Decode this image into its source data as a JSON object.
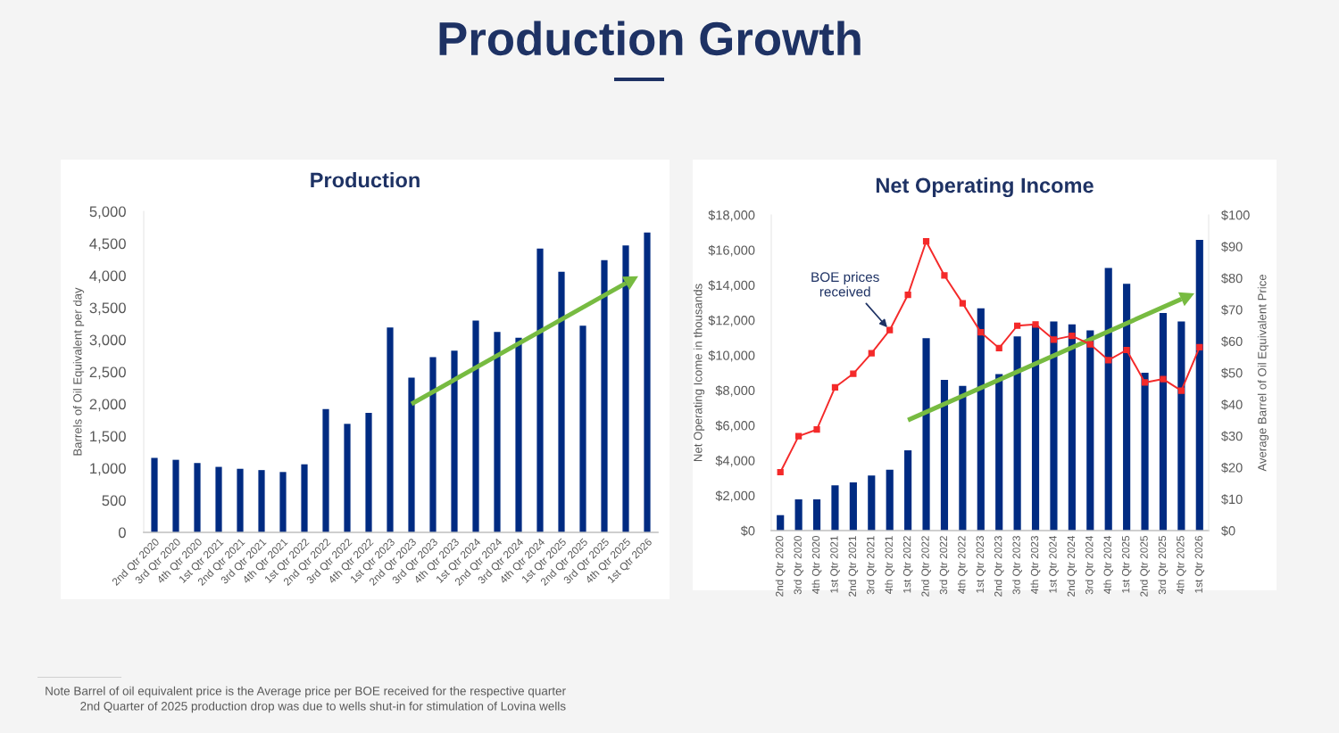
{
  "chart_data": [
    {
      "type": "bar",
      "title": "Production",
      "ylabel": "Barrels of Oil Equivalent per day",
      "categories": [
        "2nd Qtr 2020",
        "3rd Qtr 2020",
        "4th Qtr 2020",
        "1st Qtr 2021",
        "2nd Qtr 2021",
        "3rd Qtr 2021",
        "4th Qtr 2021",
        "1st Qtr 2022",
        "2nd Qtr 2022",
        "3rd Qtr 2022",
        "4th Qtr 2022",
        "1st Qtr 2023",
        "2nd Qtr 2023",
        "3rd Qtr 2023",
        "4th Qtr 2023",
        "1st Qtr 2024",
        "2nd Qtr 2024",
        "3rd Qtr 2024",
        "4th Qtr 2024",
        "1st Qtr 2025",
        "2nd Qtr 2025",
        "3rd Qtr 2025",
        "4th Qtr 2025",
        "1st Qtr 2026"
      ],
      "series": [
        {
          "color": "#002b82",
          "values": [
            1160,
            1130,
            1080,
            1020,
            990,
            970,
            940,
            1060,
            1920,
            1690,
            1860,
            3190,
            2410,
            2730,
            2830,
            3300,
            3120,
            3030,
            4420,
            4060,
            3220,
            4240,
            4470,
            4670
          ]
        },
        {
          "type": "line",
          "color": "#77bb41",
          "x": [
            "2nd Qtr 2023",
            "4th Qtr 2025"
          ],
          "values": [
            2000,
            3880
          ]
        }
      ],
      "ylim": [
        0,
        5000
      ],
      "yticks": [
        {
          "value": 0,
          "label": "0"
        },
        {
          "value": 500,
          "label": "500"
        },
        {
          "value": 1000,
          "label": "1,000"
        },
        {
          "value": 1500,
          "label": "1,500"
        },
        {
          "value": 2000,
          "label": "2,000"
        },
        {
          "value": 2500,
          "label": "2,500"
        },
        {
          "value": 3000,
          "label": "3,000"
        },
        {
          "value": 3500,
          "label": "3,500"
        },
        {
          "value": 4000,
          "label": "4,000"
        },
        {
          "value": 4500,
          "label": "4,500"
        },
        {
          "value": 5000,
          "label": "5,000"
        }
      ],
      "annotations": [
        "Production Growth",
        "Note Barrel of oil equivalent price is the Average price per BOE received for the respective quarter",
        "2nd Quarter of 2025 production drop was due to wells shut-in for stimulation of Lovina wells"
      ]
    },
    {
      "type": "bar",
      "title": "Net Operating Income",
      "ylabel": "Net Operating Icome in thousands",
      "y2label": "Average Barrel of Oil Equivalent Price",
      "categories": [
        "2nd Qtr 2020",
        "3rd Qtr 2020",
        "4th Qtr 2020",
        "1st Qtr 2021",
        "2nd Qtr 2021",
        "3rd Qtr 2021",
        "4th Qtr 2021",
        "1st Qtr 2022",
        "2nd Qtr 2022",
        "3rd Qtr 2022",
        "4th Qtr 2022",
        "1st Qtr 2023",
        "2nd Qtr 2023",
        "3rd Qtr 2023",
        "4th Qtr 2023",
        "1st Qtr 2024",
        "2nd Qtr 2024",
        "3rd Qtr 2024",
        "4th Qtr 2024",
        "1st Qtr 2025",
        "2nd Qtr 2025",
        "3rd Qtr 2025",
        "4th Qtr 2025",
        "1st Qtr 2026"
      ],
      "series": [
        {
          "color": "#002b82",
          "values": [
            880,
            1780,
            1780,
            2580,
            2750,
            3140,
            3470,
            4580,
            10970,
            8590,
            8250,
            12680,
            8930,
            11070,
            11700,
            11920,
            11760,
            11410,
            14980,
            14070,
            9000,
            12410,
            11920,
            16580
          ]
        },
        {
          "type": "line",
          "name": "BOE prices received",
          "axis": "y2",
          "color": "#f42a2a",
          "marker": "square",
          "values": [
            18.5,
            29.9,
            32.0,
            45.4,
            49.7,
            56.2,
            63.5,
            74.7,
            91.6,
            80.8,
            72.0,
            62.8,
            57.8,
            64.9,
            65.3,
            60.5,
            61.7,
            59.0,
            54.0,
            57.2,
            46.9,
            48.0,
            44.3,
            58.1
          ]
        },
        {
          "type": "line",
          "color": "#77bb41",
          "x": [
            "1st Qtr 2022",
            "4th Qtr 2025"
          ],
          "values": [
            6300,
            13200
          ]
        }
      ],
      "ylim": [
        0,
        18000
      ],
      "yticks": [
        {
          "value": 0,
          "label": "$0"
        },
        {
          "value": 2000,
          "label": "$2,000"
        },
        {
          "value": 4000,
          "label": "$4,000"
        },
        {
          "value": 6000,
          "label": "$6,000"
        },
        {
          "value": 8000,
          "label": "$8,000"
        },
        {
          "value": 10000,
          "label": "$10,000"
        },
        {
          "value": 12000,
          "label": "$12,000"
        },
        {
          "value": 14000,
          "label": "$14,000"
        },
        {
          "value": 16000,
          "label": "$16,000"
        },
        {
          "value": 18000,
          "label": "$18,000"
        }
      ],
      "y2lim": [
        0,
        100
      ],
      "y2ticks": [
        {
          "value": 0,
          "label": "$0"
        },
        {
          "value": 10,
          "label": "$10"
        },
        {
          "value": 20,
          "label": "$20"
        },
        {
          "value": 30,
          "label": "$30"
        },
        {
          "value": 40,
          "label": "$40"
        },
        {
          "value": 50,
          "label": "$50"
        },
        {
          "value": 60,
          "label": "$60"
        },
        {
          "value": 70,
          "label": "$70"
        },
        {
          "value": 80,
          "label": "$80"
        },
        {
          "value": 90,
          "label": "$90"
        },
        {
          "value": 100,
          "label": "$100"
        }
      ]
    }
  ]
}
